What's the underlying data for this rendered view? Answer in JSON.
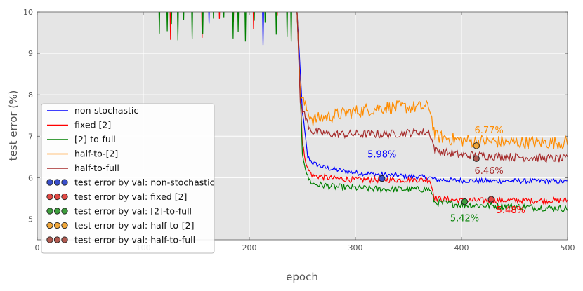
{
  "chart_data": {
    "type": "line",
    "xlabel": "epoch",
    "ylabel": "test error (%)",
    "xlim": [
      0,
      500
    ],
    "ylim": [
      4.5,
      10
    ],
    "xticks": [
      0,
      100,
      200,
      300,
      400,
      500
    ],
    "yticks": [
      5,
      6,
      7,
      8,
      9,
      10
    ],
    "grid": true,
    "legend_position": "lower-left",
    "series": [
      {
        "name": "non-stochastic",
        "color": "#0000ff",
        "points": [
          [
            245,
            10
          ],
          [
            250,
            7.6
          ],
          [
            255,
            6.5
          ],
          [
            260,
            6.35
          ],
          [
            265,
            6.3
          ],
          [
            270,
            6.25
          ],
          [
            280,
            6.2
          ],
          [
            290,
            6.15
          ],
          [
            300,
            6.12
          ],
          [
            320,
            6.08
          ],
          [
            340,
            6.05
          ],
          [
            360,
            6.02
          ],
          [
            370,
            6.0
          ],
          [
            375,
            5.96
          ],
          [
            390,
            5.94
          ],
          [
            420,
            5.92
          ],
          [
            450,
            5.92
          ],
          [
            480,
            5.92
          ],
          [
            500,
            5.9
          ]
        ],
        "noise": 0.06
      },
      {
        "name": "fixed [2]",
        "color": "#ff0000",
        "points": [
          [
            245,
            10
          ],
          [
            250,
            6.8
          ],
          [
            255,
            6.2
          ],
          [
            260,
            6.05
          ],
          [
            280,
            5.98
          ],
          [
            300,
            5.95
          ],
          [
            330,
            5.95
          ],
          [
            360,
            5.95
          ],
          [
            370,
            5.95
          ],
          [
            375,
            5.5
          ],
          [
            400,
            5.45
          ],
          [
            450,
            5.45
          ],
          [
            500,
            5.45
          ]
        ],
        "noise": 0.07
      },
      {
        "name": "[2]-to-full",
        "color": "#008000",
        "points": [
          [
            245,
            10
          ],
          [
            250,
            6.6
          ],
          [
            255,
            6.0
          ],
          [
            260,
            5.85
          ],
          [
            280,
            5.78
          ],
          [
            300,
            5.75
          ],
          [
            330,
            5.72
          ],
          [
            360,
            5.72
          ],
          [
            370,
            5.72
          ],
          [
            375,
            5.4
          ],
          [
            400,
            5.35
          ],
          [
            450,
            5.3
          ],
          [
            500,
            5.25
          ]
        ],
        "noise": 0.08
      },
      {
        "name": "half-to-[2]",
        "color": "#ff8c00",
        "points": [
          [
            245,
            10
          ],
          [
            248,
            8.0
          ],
          [
            255,
            7.6
          ],
          [
            260,
            7.4
          ],
          [
            280,
            7.5
          ],
          [
            300,
            7.6
          ],
          [
            330,
            7.7
          ],
          [
            360,
            7.7
          ],
          [
            370,
            7.7
          ],
          [
            375,
            7.0
          ],
          [
            400,
            6.9
          ],
          [
            450,
            6.85
          ],
          [
            500,
            6.85
          ]
        ],
        "noise": 0.16
      },
      {
        "name": "half-to-full",
        "color": "#a52a2a",
        "points": [
          [
            245,
            10
          ],
          [
            248,
            7.8
          ],
          [
            255,
            7.3
          ],
          [
            260,
            7.1
          ],
          [
            280,
            7.05
          ],
          [
            300,
            7.05
          ],
          [
            330,
            7.05
          ],
          [
            360,
            7.1
          ],
          [
            370,
            7.1
          ],
          [
            375,
            6.65
          ],
          [
            400,
            6.55
          ],
          [
            450,
            6.5
          ],
          [
            500,
            6.45
          ]
        ],
        "noise": 0.1
      }
    ],
    "markers": [
      {
        "name": "test error by val: non-stochastic",
        "color": "#0000ff",
        "fill": "#3a4fcc",
        "x": 325,
        "y": 5.98,
        "label": "5.98%"
      },
      {
        "name": "test error by val: fixed [2]",
        "color": "#ff0000",
        "fill": "#e04a45",
        "x": 428,
        "y": 5.48,
        "label": "5.48%"
      },
      {
        "name": "test error by val: [2]-to-full",
        "color": "#008000",
        "fill": "#3d9e3d",
        "x": 403,
        "y": 5.42,
        "label": "5.42%"
      },
      {
        "name": "test error by val: half-to-[2]",
        "color": "#ff8c00",
        "fill": "#f0a73a",
        "x": 414,
        "y": 6.77,
        "label": "6.77%"
      },
      {
        "name": "test error by val: half-to-full",
        "color": "#a52a2a",
        "fill": "#b05a50",
        "x": 414,
        "y": 6.46,
        "label": "6.46%"
      }
    ]
  }
}
